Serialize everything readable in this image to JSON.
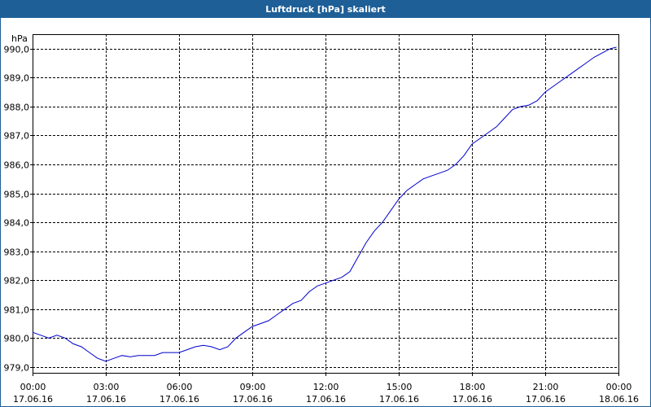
{
  "window": {
    "title": "Luftdruck [hPa] skaliert"
  },
  "colors": {
    "title_bar": "#1e5f97",
    "line": "#0000cc",
    "grid": "#000000",
    "axis": "#000000"
  },
  "chart_data": {
    "type": "line",
    "title": "Luftdruck [hPa] skaliert",
    "ylabel": "hPa",
    "xlabel": "",
    "grid": true,
    "ylim": [
      978.8,
      990.5
    ],
    "yticks": [
      979.0,
      980.0,
      981.0,
      982.0,
      983.0,
      984.0,
      985.0,
      986.0,
      987.0,
      988.0,
      989.0,
      990.0
    ],
    "ytick_labels": [
      "979,0",
      "980,0",
      "981,0",
      "982,0",
      "983,0",
      "984,0",
      "985,0",
      "986,0",
      "987,0",
      "988,0",
      "989,0",
      "990,0"
    ],
    "xlim": [
      "17.06.16 00:00",
      "18.06.16 00:00"
    ],
    "xticks": [
      {
        "time": "00:00",
        "date": "17.06.16"
      },
      {
        "time": "03:00",
        "date": "17.06.16"
      },
      {
        "time": "06:00",
        "date": "17.06.16"
      },
      {
        "time": "09:00",
        "date": "17.06.16"
      },
      {
        "time": "12:00",
        "date": "17.06.16"
      },
      {
        "time": "15:00",
        "date": "17.06.16"
      },
      {
        "time": "18:00",
        "date": "17.06.16"
      },
      {
        "time": "21:00",
        "date": "17.06.16"
      },
      {
        "time": "00:00",
        "date": "18.06.16"
      }
    ],
    "x": [
      "00:00",
      "00:20",
      "00:40",
      "01:00",
      "01:20",
      "01:40",
      "02:00",
      "02:20",
      "02:40",
      "03:00",
      "03:20",
      "03:40",
      "04:00",
      "04:20",
      "04:40",
      "05:00",
      "05:20",
      "05:40",
      "06:00",
      "06:20",
      "06:40",
      "07:00",
      "07:20",
      "07:40",
      "08:00",
      "08:20",
      "08:40",
      "09:00",
      "09:20",
      "09:40",
      "10:00",
      "10:20",
      "10:40",
      "11:00",
      "11:20",
      "11:40",
      "12:00",
      "12:20",
      "12:40",
      "13:00",
      "13:20",
      "13:40",
      "14:00",
      "14:20",
      "14:40",
      "15:00",
      "15:20",
      "15:40",
      "16:00",
      "16:20",
      "16:40",
      "17:00",
      "17:20",
      "17:40",
      "18:00",
      "18:20",
      "18:40",
      "19:00",
      "19:20",
      "19:40",
      "20:00",
      "20:20",
      "20:40",
      "21:00",
      "21:20",
      "21:40",
      "22:00",
      "22:20",
      "22:40",
      "23:00",
      "23:20",
      "23:40",
      "23:55"
    ],
    "series": [
      {
        "values": [
          980.2,
          980.1,
          980.0,
          980.1,
          980.0,
          979.8,
          979.7,
          979.5,
          979.3,
          979.2,
          979.3,
          979.4,
          979.35,
          979.4,
          979.4,
          979.4,
          979.5,
          979.5,
          979.5,
          979.6,
          979.7,
          979.75,
          979.7,
          979.6,
          979.7,
          980.0,
          980.2,
          980.4,
          980.5,
          980.6,
          980.8,
          981.0,
          981.2,
          981.3,
          981.6,
          981.8,
          981.9,
          982.0,
          982.1,
          982.3,
          982.8,
          983.3,
          983.7,
          984.0,
          984.4,
          984.8,
          985.1,
          985.3,
          985.5,
          985.6,
          985.7,
          985.8,
          986.0,
          986.3,
          986.7,
          986.9,
          987.1,
          987.3,
          987.6,
          987.9,
          988.0,
          988.05,
          988.2,
          988.5,
          988.7,
          988.9,
          989.1,
          989.3,
          989.5,
          989.7,
          989.85,
          990.0,
          990.05
        ]
      }
    ]
  }
}
